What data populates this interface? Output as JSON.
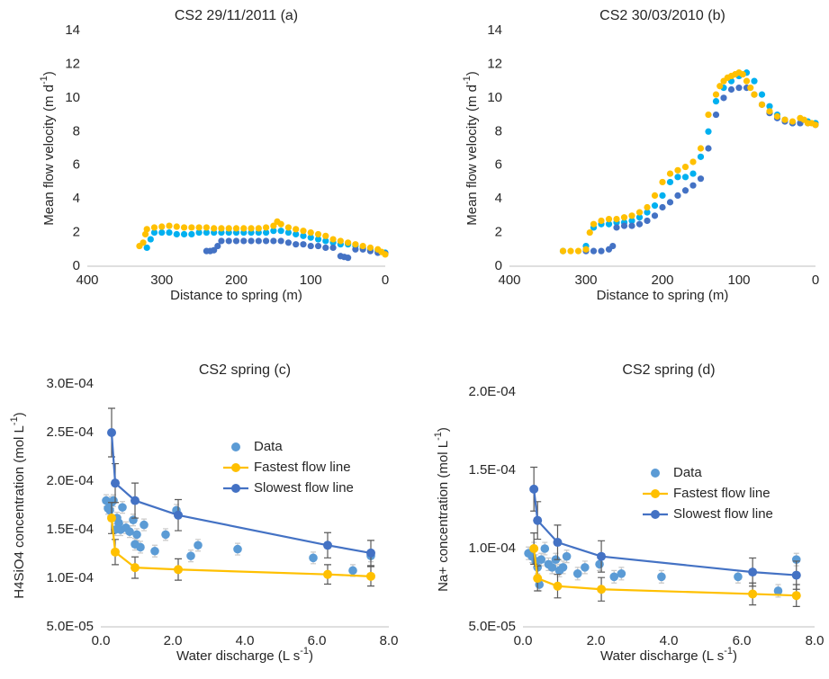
{
  "chart_data": [
    {
      "type": "scatter",
      "title": "CS2 29/11/2011  (a)",
      "xlabel": "Distance to spring (m)",
      "ylabel": [
        "Mean flow velocity (m d",
        "-1",
        ")"
      ],
      "xlim": [
        400,
        0
      ],
      "xticks": [
        400,
        300,
        200,
        100,
        0
      ],
      "ylim": [
        0,
        14
      ],
      "yticks": [
        0,
        2,
        4,
        6,
        8,
        10,
        12,
        14
      ],
      "series": [
        {
          "color": "#00B0F0",
          "x": [
            320,
            315,
            310,
            300,
            290,
            280,
            270,
            260,
            250,
            240,
            230,
            220,
            210,
            200,
            190,
            180,
            170,
            160,
            150,
            140,
            130,
            120,
            110,
            100,
            90,
            80,
            70,
            60,
            50,
            40,
            30,
            20,
            10,
            0
          ],
          "values": [
            1.1,
            1.6,
            2.0,
            2.0,
            2.0,
            1.9,
            1.9,
            1.9,
            2.0,
            2.0,
            2.0,
            2.0,
            2.0,
            2.0,
            2.0,
            2.0,
            2.0,
            2.0,
            2.1,
            2.1,
            2.0,
            1.9,
            1.8,
            1.7,
            1.6,
            1.5,
            1.4,
            1.3,
            1.3,
            1.2,
            1.1,
            1.0,
            0.9,
            0.8
          ]
        },
        {
          "color": "#4472C4",
          "x": [
            240,
            235,
            230,
            225,
            220,
            210,
            200,
            190,
            180,
            170,
            160,
            150,
            140,
            130,
            120,
            110,
            100,
            90,
            80,
            70,
            60,
            55,
            50,
            40,
            30,
            20,
            10,
            0
          ],
          "values": [
            0.9,
            0.9,
            0.95,
            1.2,
            1.5,
            1.5,
            1.5,
            1.5,
            1.5,
            1.5,
            1.5,
            1.5,
            1.5,
            1.4,
            1.3,
            1.3,
            1.2,
            1.2,
            1.1,
            1.1,
            0.6,
            0.55,
            0.5,
            1.0,
            1.0,
            0.9,
            0.8,
            0.75
          ]
        },
        {
          "color": "#FFC000",
          "x": [
            330,
            325,
            322,
            320,
            310,
            300,
            290,
            280,
            270,
            260,
            250,
            240,
            230,
            220,
            210,
            200,
            190,
            180,
            170,
            160,
            150,
            145,
            140,
            130,
            120,
            110,
            100,
            90,
            80,
            70,
            60,
            50,
            40,
            30,
            20,
            10,
            5,
            0
          ],
          "values": [
            1.2,
            1.4,
            1.9,
            2.2,
            2.3,
            2.35,
            2.4,
            2.35,
            2.3,
            2.3,
            2.3,
            2.3,
            2.25,
            2.25,
            2.25,
            2.25,
            2.25,
            2.25,
            2.25,
            2.3,
            2.4,
            2.65,
            2.5,
            2.3,
            2.2,
            2.1,
            2.0,
            1.9,
            1.8,
            1.6,
            1.5,
            1.4,
            1.3,
            1.2,
            1.1,
            1.0,
            0.85,
            0.7
          ]
        }
      ]
    },
    {
      "type": "scatter",
      "title": "CS2 30/03/2010  (b)",
      "xlabel": "Distance to spring (m)",
      "ylabel": [
        "Mean flow velocity (m d",
        "-1",
        ")"
      ],
      "xlim": [
        400,
        0
      ],
      "xticks": [
        400,
        300,
        200,
        100,
        0
      ],
      "ylim": [
        0,
        14
      ],
      "yticks": [
        0,
        2,
        4,
        6,
        8,
        10,
        12,
        14
      ],
      "series": [
        {
          "color": "#00B0F0",
          "x": [
            330,
            300,
            290,
            280,
            270,
            260,
            250,
            240,
            230,
            220,
            210,
            200,
            190,
            180,
            170,
            160,
            150,
            140,
            130,
            120,
            110,
            100,
            90,
            80,
            70,
            60,
            50,
            40,
            30,
            20,
            10,
            0
          ],
          "values": [
            0.9,
            1.2,
            2.3,
            2.5,
            2.5,
            2.6,
            2.6,
            2.7,
            2.9,
            3.2,
            3.6,
            4.2,
            5.0,
            5.3,
            5.3,
            5.5,
            6.5,
            8.0,
            9.8,
            10.6,
            11.0,
            11.3,
            11.5,
            11.0,
            10.2,
            9.5,
            9.0,
            8.7,
            8.5,
            8.5,
            8.6,
            8.5
          ]
        },
        {
          "color": "#4472C4",
          "x": [
            300,
            290,
            280,
            270,
            265,
            260,
            250,
            240,
            230,
            220,
            210,
            200,
            190,
            180,
            170,
            160,
            150,
            140,
            130,
            120,
            110,
            100,
            90,
            80,
            70,
            60,
            50,
            40,
            30,
            20,
            10,
            0
          ],
          "values": [
            0.9,
            0.9,
            0.9,
            1.0,
            1.2,
            2.3,
            2.4,
            2.4,
            2.5,
            2.7,
            3.0,
            3.5,
            3.8,
            4.2,
            4.5,
            4.8,
            5.2,
            7.0,
            9.0,
            10.0,
            10.5,
            10.6,
            10.6,
            10.2,
            9.6,
            9.1,
            8.8,
            8.6,
            8.5,
            8.5,
            8.5,
            8.4
          ]
        },
        {
          "color": "#FFC000",
          "x": [
            330,
            320,
            310,
            300,
            295,
            290,
            280,
            270,
            260,
            250,
            240,
            230,
            220,
            210,
            200,
            190,
            180,
            170,
            160,
            150,
            140,
            130,
            125,
            120,
            115,
            110,
            105,
            100,
            95,
            90,
            85,
            80,
            70,
            60,
            50,
            40,
            30,
            20,
            15,
            10,
            5,
            0
          ],
          "values": [
            0.9,
            0.9,
            0.9,
            1.0,
            2.0,
            2.5,
            2.7,
            2.8,
            2.8,
            2.9,
            3.0,
            3.2,
            3.5,
            4.2,
            5.0,
            5.5,
            5.7,
            5.9,
            6.2,
            7.0,
            9.0,
            10.2,
            10.7,
            11.0,
            11.2,
            11.3,
            11.4,
            11.5,
            11.4,
            11.0,
            10.6,
            10.2,
            9.6,
            9.2,
            8.9,
            8.7,
            8.6,
            8.8,
            8.7,
            8.5,
            8.5,
            8.4
          ]
        }
      ]
    },
    {
      "type": "line",
      "title": "CS2 spring  (c)",
      "legend": "upper right",
      "xlabel": [
        "Water discharge (L s",
        "-1",
        ")"
      ],
      "ylabel": [
        "H4SiO4 concentration (mol L",
        "-1",
        ")"
      ],
      "xlim": [
        0,
        8
      ],
      "xticks": [
        {
          "value": 0,
          "label": "0.0"
        },
        {
          "value": 2,
          "label": "2.0"
        },
        {
          "value": 4,
          "label": "4.0"
        },
        {
          "value": 6,
          "label": "6.0"
        },
        {
          "value": 8,
          "label": "8.0"
        }
      ],
      "ylim": [
        5e-05,
        0.0003
      ],
      "yticks": [
        {
          "value": 5e-05,
          "label": "5.0E-05"
        },
        {
          "value": 0.0001,
          "label": "1.0E-04"
        },
        {
          "value": 0.00015,
          "label": "1.5E-04"
        },
        {
          "value": 0.0002,
          "label": "2.0E-04"
        },
        {
          "value": 0.00025,
          "label": "2.5E-04"
        },
        {
          "value": 0.0003,
          "label": "3.0E-04"
        }
      ],
      "series": [
        {
          "name": "Data",
          "color": "#5B9BD5",
          "mode": "markers",
          "x": [
            0.15,
            0.2,
            0.25,
            0.3,
            0.35,
            0.4,
            0.45,
            0.5,
            0.55,
            0.6,
            0.7,
            0.8,
            0.9,
            0.95,
            1.0,
            1.1,
            1.2,
            1.5,
            1.8,
            2.1,
            2.5,
            2.7,
            3.8,
            5.9,
            7.0,
            7.5
          ],
          "values": [
            0.00018,
            0.000172,
            0.00017,
            0.000178,
            0.00018,
            0.00015,
            0.000162,
            0.000157,
            0.00015,
            0.000173,
            0.000152,
            0.000148,
            0.00016,
            0.000135,
            0.000145,
            0.000132,
            0.000155,
            0.000128,
            0.000145,
            0.00017,
            0.000123,
            0.000134,
            0.00013,
            0.000121,
            0.000108,
            0.000123
          ],
          "errors": [
            6e-06,
            6e-06,
            6e-06,
            6e-06,
            6e-06,
            6e-06,
            6e-06,
            6e-06,
            6e-06,
            6e-06,
            6e-06,
            6e-06,
            6e-06,
            6e-06,
            6e-06,
            6e-06,
            6e-06,
            6e-06,
            6e-06,
            6e-06,
            6e-06,
            6e-06,
            6e-06,
            6e-06,
            6e-06,
            6e-06
          ]
        },
        {
          "name": "Fastest flow line",
          "color": "#FFC000",
          "mode": "lines+markers",
          "x": [
            0.3,
            0.4,
            0.95,
            2.15,
            6.3,
            7.5
          ],
          "values": [
            0.000162,
            0.000127,
            0.000111,
            0.000109,
            0.000104,
            0.000102
          ],
          "errors": [
            1.6e-05,
            1.3e-05,
            1.1e-05,
            1.1e-05,
            1e-05,
            1e-05
          ]
        },
        {
          "name": "Slowest flow line",
          "color": "#4472C4",
          "mode": "lines+markers",
          "x": [
            0.3,
            0.4,
            0.95,
            2.15,
            6.3,
            7.5
          ],
          "values": [
            0.00025,
            0.000198,
            0.00018,
            0.000165,
            0.000134,
            0.000126
          ],
          "errors": [
            2.5e-05,
            2e-05,
            1.8e-05,
            1.6e-05,
            1.3e-05,
            1.3e-05
          ]
        }
      ]
    },
    {
      "type": "line",
      "title": "CS2 spring  (d)",
      "legend": "upper right",
      "xlabel": [
        "Water discharge (L s",
        "-1",
        ")"
      ],
      "ylabel": [
        "Na+ concentration (mol L",
        "-1",
        ")"
      ],
      "xlim": [
        0,
        8
      ],
      "xticks": [
        {
          "value": 0,
          "label": "0.0"
        },
        {
          "value": 2,
          "label": "2.0"
        },
        {
          "value": 4,
          "label": "4.0"
        },
        {
          "value": 6,
          "label": "6.0"
        },
        {
          "value": 8,
          "label": "8.0"
        }
      ],
      "ylim": [
        5e-05,
        0.0002
      ],
      "yticks": [
        {
          "value": 5e-05,
          "label": "5.0E-05"
        },
        {
          "value": 0.0001,
          "label": "1.0E-04"
        },
        {
          "value": 0.00015,
          "label": "1.5E-04"
        },
        {
          "value": 0.0002,
          "label": "2.0E-04"
        }
      ],
      "series": [
        {
          "name": "Data",
          "color": "#5B9BD5",
          "mode": "markers",
          "x": [
            0.15,
            0.25,
            0.3,
            0.35,
            0.4,
            0.45,
            0.5,
            0.6,
            0.7,
            0.8,
            0.9,
            1.0,
            1.1,
            1.2,
            1.5,
            1.7,
            2.1,
            2.5,
            2.7,
            3.8,
            5.9,
            7.0,
            7.5
          ],
          "values": [
            9.7e-05,
            9.5e-05,
            0.0001,
            9.2e-05,
            8.8e-05,
            7.7e-05,
            9.3e-05,
            0.0001,
            9e-05,
            8.8e-05,
            9.3e-05,
            8.6e-05,
            8.8e-05,
            9.5e-05,
            8.4e-05,
            8.8e-05,
            9e-05,
            8.2e-05,
            8.4e-05,
            8.2e-05,
            8.2e-05,
            7.3e-05,
            9.3e-05
          ],
          "errors": [
            4e-06,
            4e-06,
            4e-06,
            4e-06,
            4e-06,
            4e-06,
            4e-06,
            4e-06,
            4e-06,
            4e-06,
            4e-06,
            4e-06,
            4e-06,
            4e-06,
            4e-06,
            4e-06,
            4e-06,
            4e-06,
            4e-06,
            4e-06,
            4e-06,
            4e-06,
            4e-06
          ]
        },
        {
          "name": "Fastest flow line",
          "color": "#FFC000",
          "mode": "lines+markers",
          "x": [
            0.3,
            0.4,
            0.95,
            2.15,
            6.3,
            7.5
          ],
          "values": [
            0.0001,
            8.1e-05,
            7.6e-05,
            7.4e-05,
            7.1e-05,
            7e-05
          ],
          "errors": [
            1e-05,
            8e-06,
            7.5e-06,
            7.5e-06,
            7e-06,
            7e-06
          ]
        },
        {
          "name": "Slowest flow line",
          "color": "#4472C4",
          "mode": "lines+markers",
          "x": [
            0.3,
            0.4,
            0.95,
            2.15,
            6.3,
            7.5
          ],
          "values": [
            0.000138,
            0.000118,
            0.000104,
            9.5e-05,
            8.5e-05,
            8.3e-05
          ],
          "errors": [
            1.4e-05,
            1.2e-05,
            1.1e-05,
            1e-05,
            9e-06,
            9e-06
          ]
        }
      ]
    }
  ]
}
